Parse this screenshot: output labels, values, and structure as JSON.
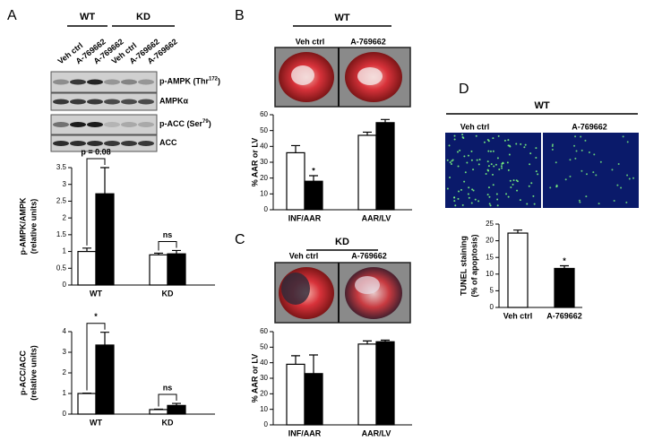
{
  "panel_labels": [
    "A",
    "B",
    "C",
    "D"
  ],
  "panel_a": {
    "groups": [
      "WT",
      "KD"
    ],
    "lanes": [
      "Veh ctrl",
      "A-769662",
      "A-769662",
      "Veh ctrl",
      "A-769662",
      "A-769662"
    ],
    "blots": [
      {
        "name": "p-AMPK (Thr",
        "sup": "172",
        "end": ")"
      },
      {
        "name": "AMPKα"
      },
      {
        "name": "p-ACC (Ser",
        "sup": "79",
        "end": ")"
      },
      {
        "name": "ACC"
      }
    ]
  },
  "panel_b": {
    "group": "WT",
    "columns": [
      "Veh ctrl",
      "A-769662"
    ]
  },
  "panel_c": {
    "group": "KD",
    "columns": [
      "Veh ctrl",
      "A-769662"
    ]
  },
  "panel_d": {
    "group": "WT",
    "columns": [
      "Veh ctrl",
      "A-769662"
    ]
  },
  "chart_data": [
    {
      "type": "bar",
      "ylabel": "p-AMPK/AMPK",
      "ylabel_sub": "(relative units)",
      "categories": [
        "WT",
        "KD"
      ],
      "series": [
        {
          "color": "#ffffff",
          "values": [
            1.0,
            0.9
          ],
          "errors": [
            0.1,
            0.05
          ]
        },
        {
          "color": "#000000",
          "values": [
            2.72,
            0.93
          ],
          "errors": [
            0.78,
            0.1
          ]
        }
      ],
      "ylim": [
        0,
        3.5
      ],
      "yticks": [
        0,
        0.5,
        1,
        1.5,
        2,
        2.5,
        3,
        3.5
      ],
      "annotations": [
        "p = 0.08",
        "ns"
      ],
      "brackets": true
    },
    {
      "type": "bar",
      "ylabel": "p-ACC/ACC",
      "ylabel_sub": "(relative units)",
      "categories": [
        "WT",
        "KD"
      ],
      "series": [
        {
          "color": "#ffffff",
          "values": [
            1.0,
            0.22
          ],
          "errors": [
            0.02,
            0.02
          ]
        },
        {
          "color": "#000000",
          "values": [
            3.35,
            0.42
          ],
          "errors": [
            0.62,
            0.1
          ]
        }
      ],
      "ylim": [
        0,
        4
      ],
      "yticks": [
        0,
        1,
        2,
        3,
        4
      ],
      "annotations": [
        "*",
        "ns"
      ],
      "brackets": true
    },
    {
      "type": "bar",
      "ylabel": "% AAR or LV",
      "categories": [
        "INF/AAR",
        "AAR/LV"
      ],
      "series": [
        {
          "color": "#ffffff",
          "values": [
            36,
            47
          ],
          "errors": [
            4.5,
            2
          ]
        },
        {
          "color": "#000000",
          "values": [
            18,
            55
          ],
          "errors": [
            3.5,
            2
          ]
        }
      ],
      "ylim": [
        0,
        60
      ],
      "yticks": [
        0,
        10,
        20,
        30,
        40,
        50,
        60
      ],
      "annotations": [
        "*",
        null
      ],
      "brackets": false
    },
    {
      "type": "bar",
      "ylabel": "% AAR or LV",
      "categories": [
        "INF/AAR",
        "AAR/LV"
      ],
      "series": [
        {
          "color": "#ffffff",
          "values": [
            39,
            52
          ],
          "errors": [
            5.5,
            2
          ]
        },
        {
          "color": "#000000",
          "values": [
            33,
            53.5
          ],
          "errors": [
            12,
            1
          ]
        }
      ],
      "ylim": [
        0,
        60
      ],
      "yticks": [
        0,
        10,
        20,
        30,
        40,
        50,
        60
      ],
      "annotations": [
        null,
        null
      ],
      "brackets": false
    },
    {
      "type": "bar",
      "ylabel": "TUNEL staining",
      "ylabel_sub": "(% of apoptosis)",
      "categories": [
        "Veh ctrl",
        "A-769662"
      ],
      "values": [
        22.3,
        11.7
      ],
      "errors": [
        0.9,
        0.8
      ],
      "colors": [
        "#ffffff",
        "#000000"
      ],
      "ylim": [
        0,
        25
      ],
      "yticks": [
        0,
        5,
        10,
        15,
        20,
        25
      ],
      "annotations": [
        null,
        "*"
      ],
      "brackets": false
    }
  ]
}
